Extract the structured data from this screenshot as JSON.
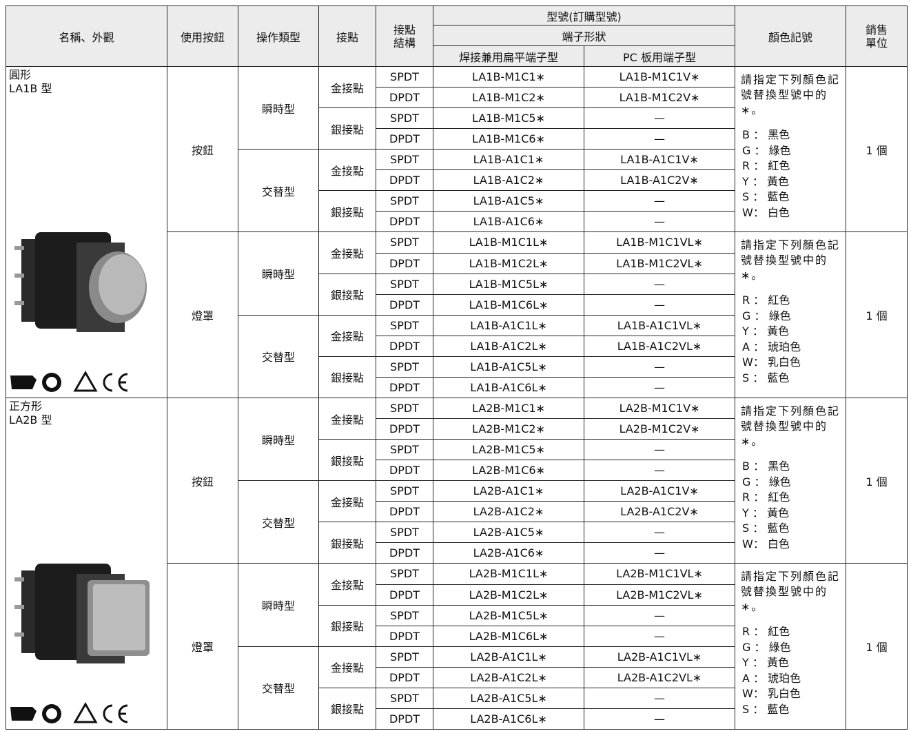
{
  "header": {
    "name": "名稱、外觀",
    "button": "使用按鈕",
    "operation": "操作類型",
    "contact": "接點",
    "structure": "接點結構",
    "model": "型號(訂購型號)",
    "terminal": "端子形狀",
    "flat": "焊接兼用扁平端子型",
    "pc": "PC 板用端子型",
    "color": "顏色記號",
    "unit": "銷售單位"
  },
  "products": [
    {
      "name": "圓形",
      "model": "LA1B 型",
      "shape": "round",
      "buttons": [
        {
          "type": "按鈕",
          "color_note": "請指定下列顏色記號替換型號中的∗。",
          "colors": [
            "B ： 黑色",
            "G ： 綠色",
            "R ： 紅色",
            "Y ： 黃色",
            "S ： 藍色",
            "W： 白色"
          ],
          "unit": "1 個",
          "operations": [
            {
              "type": "瞬時型",
              "contacts": [
                {
                  "type": "金接點",
                  "rows": [
                    [
                      "SPDT",
                      "LA1B-M1C1∗",
                      "LA1B-M1C1V∗"
                    ],
                    [
                      "DPDT",
                      "LA1B-M1C2∗",
                      "LA1B-M1C2V∗"
                    ]
                  ]
                },
                {
                  "type": "銀接點",
                  "rows": [
                    [
                      "SPDT",
                      "LA1B-M1C5∗",
                      "—"
                    ],
                    [
                      "DPDT",
                      "LA1B-M1C6∗",
                      "—"
                    ]
                  ]
                }
              ]
            },
            {
              "type": "交替型",
              "contacts": [
                {
                  "type": "金接點",
                  "rows": [
                    [
                      "SPDT",
                      "LA1B-A1C1∗",
                      "LA1B-A1C1V∗"
                    ],
                    [
                      "DPDT",
                      "LA1B-A1C2∗",
                      "LA1B-A1C2V∗"
                    ]
                  ]
                },
                {
                  "type": "銀接點",
                  "rows": [
                    [
                      "SPDT",
                      "LA1B-A1C5∗",
                      "—"
                    ],
                    [
                      "DPDT",
                      "LA1B-A1C6∗",
                      "—"
                    ]
                  ]
                }
              ]
            }
          ]
        },
        {
          "type": "燈罩",
          "color_note": "請指定下列顏色記號替換型號中的∗。",
          "colors": [
            "R ： 紅色",
            "G ： 綠色",
            "Y ： 黃色",
            "A ： 琥珀色",
            "W： 乳白色",
            "S ： 藍色"
          ],
          "unit": "1 個",
          "operations": [
            {
              "type": "瞬時型",
              "contacts": [
                {
                  "type": "金接點",
                  "rows": [
                    [
                      "SPDT",
                      "LA1B-M1C1L∗",
                      "LA1B-M1C1VL∗"
                    ],
                    [
                      "DPDT",
                      "LA1B-M1C2L∗",
                      "LA1B-M1C2VL∗"
                    ]
                  ]
                },
                {
                  "type": "銀接點",
                  "rows": [
                    [
                      "SPDT",
                      "LA1B-M1C5L∗",
                      "—"
                    ],
                    [
                      "DPDT",
                      "LA1B-M1C6L∗",
                      "—"
                    ]
                  ]
                }
              ]
            },
            {
              "type": "交替型",
              "contacts": [
                {
                  "type": "金接點",
                  "rows": [
                    [
                      "SPDT",
                      "LA1B-A1C1L∗",
                      "LA1B-A1C1VL∗"
                    ],
                    [
                      "DPDT",
                      "LA1B-A1C2L∗",
                      "LA1B-A1C2VL∗"
                    ]
                  ]
                },
                {
                  "type": "銀接點",
                  "rows": [
                    [
                      "SPDT",
                      "LA1B-A1C5L∗",
                      "—"
                    ],
                    [
                      "DPDT",
                      "LA1B-A1C6L∗",
                      "—"
                    ]
                  ]
                }
              ]
            }
          ]
        }
      ]
    },
    {
      "name": "正方形",
      "model": "LA2B 型",
      "shape": "square",
      "buttons": [
        {
          "type": "按鈕",
          "color_note": "請指定下列顏色記號替換型號中的∗。",
          "colors": [
            "B ： 黑色",
            "G ： 綠色",
            "R ： 紅色",
            "Y ： 黃色",
            "S ： 藍色",
            "W： 白色"
          ],
          "unit": "1 個",
          "operations": [
            {
              "type": "瞬時型",
              "contacts": [
                {
                  "type": "金接點",
                  "rows": [
                    [
                      "SPDT",
                      "LA2B-M1C1∗",
                      "LA2B-M1C1V∗"
                    ],
                    [
                      "DPDT",
                      "LA2B-M1C2∗",
                      "LA2B-M1C2V∗"
                    ]
                  ]
                },
                {
                  "type": "銀接點",
                  "rows": [
                    [
                      "SPDT",
                      "LA2B-M1C5∗",
                      "—"
                    ],
                    [
                      "DPDT",
                      "LA2B-M1C6∗",
                      "—"
                    ]
                  ]
                }
              ]
            },
            {
              "type": "交替型",
              "contacts": [
                {
                  "type": "金接點",
                  "rows": [
                    [
                      "SPDT",
                      "LA2B-A1C1∗",
                      "LA2B-A1C1V∗"
                    ],
                    [
                      "DPDT",
                      "LA2B-A1C2∗",
                      "LA2B-A1C2V∗"
                    ]
                  ]
                },
                {
                  "type": "銀接點",
                  "rows": [
                    [
                      "SPDT",
                      "LA2B-A1C5∗",
                      "—"
                    ],
                    [
                      "DPDT",
                      "LA2B-A1C6∗",
                      "—"
                    ]
                  ]
                }
              ]
            }
          ]
        },
        {
          "type": "燈罩",
          "color_note": "請指定下列顏色記號替換型號中的∗。",
          "colors": [
            "R ： 紅色",
            "G ： 綠色",
            "Y ： 黃色",
            "A ： 琥珀色",
            "W： 乳白色",
            "S ： 藍色"
          ],
          "unit": "1 個",
          "operations": [
            {
              "type": "瞬時型",
              "contacts": [
                {
                  "type": "金接點",
                  "rows": [
                    [
                      "SPDT",
                      "LA2B-M1C1L∗",
                      "LA2B-M1C1VL∗"
                    ],
                    [
                      "DPDT",
                      "LA2B-M1C2L∗",
                      "LA2B-M1C2VL∗"
                    ]
                  ]
                },
                {
                  "type": "銀接點",
                  "rows": [
                    [
                      "SPDT",
                      "LA2B-M1C5L∗",
                      "—"
                    ],
                    [
                      "DPDT",
                      "LA2B-M1C6L∗",
                      "—"
                    ]
                  ]
                }
              ]
            },
            {
              "type": "交替型",
              "contacts": [
                {
                  "type": "金接點",
                  "rows": [
                    [
                      "SPDT",
                      "LA2B-A1C1L∗",
                      "LA2B-A1C1VL∗"
                    ],
                    [
                      "DPDT",
                      "LA2B-A1C2L∗",
                      "LA2B-A1C2VL∗"
                    ]
                  ]
                },
                {
                  "type": "銀接點",
                  "rows": [
                    [
                      "SPDT",
                      "LA2B-A1C5L∗",
                      "—"
                    ],
                    [
                      "DPDT",
                      "LA2B-A1C6L∗",
                      "—"
                    ]
                  ]
                }
              ]
            }
          ]
        }
      ]
    }
  ]
}
